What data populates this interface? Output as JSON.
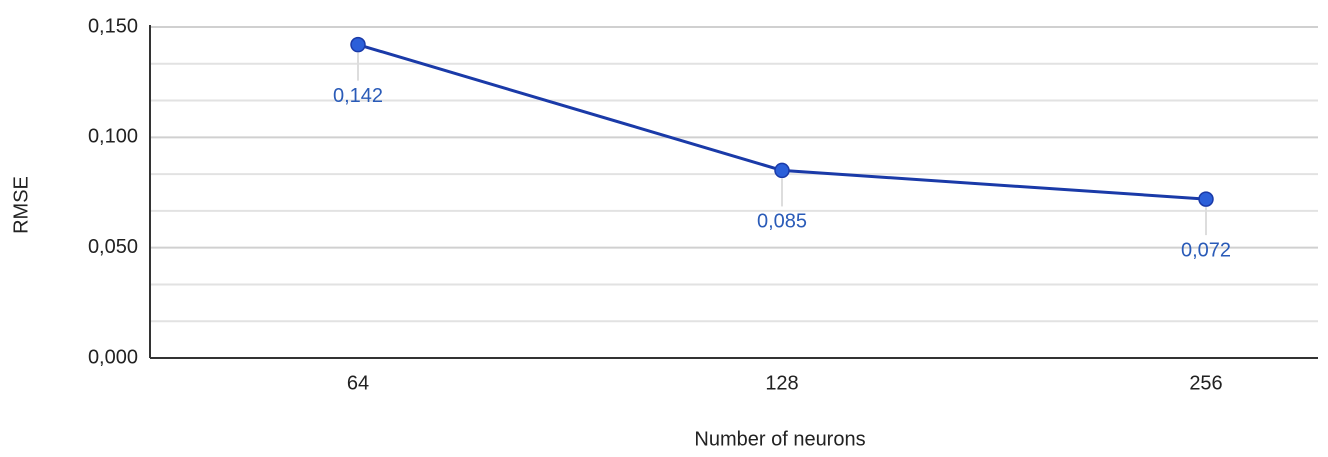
{
  "chart_data": {
    "type": "line",
    "x_label": "Number of neurons",
    "y_label": "RMSE",
    "categories": [
      "64",
      "128",
      "256"
    ],
    "series": [
      {
        "name": "RMSE",
        "color": "#1a3aa8",
        "marker_color": "#2b5fd9",
        "label_color": "#2a5bb8",
        "values": [
          0.142,
          0.085,
          0.072
        ],
        "value_labels": [
          "0,142",
          "0,085",
          "0,072"
        ]
      }
    ],
    "ylim": [
      0,
      0.15
    ],
    "yticks": [
      {
        "value": 0,
        "label": "0,000"
      },
      {
        "value": 0.05,
        "label": "0,050"
      },
      {
        "value": 0.1,
        "label": "0,100"
      },
      {
        "value": 0.15,
        "label": "0,150"
      }
    ],
    "grid": true,
    "minor_grid": true,
    "legend": false
  }
}
